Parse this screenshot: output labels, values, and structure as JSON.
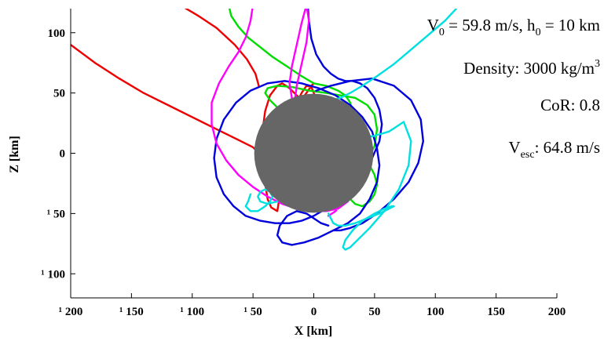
{
  "chart_data": {
    "type": "line",
    "title": "",
    "xlabel": "X [km]",
    "ylabel": "Z [km]",
    "xlim": [
      -200,
      200
    ],
    "ylim": [
      -120,
      120
    ],
    "x_ticks": [
      -200,
      -150,
      -100,
      -50,
      0,
      50,
      100,
      150,
      200
    ],
    "y_ticks": [
      -100,
      -50,
      0,
      50,
      100
    ],
    "x_tick_labels": [
      "¹ 200",
      "¹ 150",
      "¹ 100",
      "¹ 50",
      "0",
      "50",
      "100",
      "150",
      "200"
    ],
    "y_tick_labels": [
      "¹ 100",
      "¹ 50",
      "0",
      "50",
      "100"
    ],
    "grid": false,
    "legend": null,
    "body": {
      "center": [
        0,
        0
      ],
      "radius": 49,
      "color": "#666666"
    },
    "annotations": {
      "v0_label": "V",
      "v0_sub": "0",
      "v0_value": " = 59.8 m/s, h",
      "h0_sub": "0",
      "h0_value": " = 10 km",
      "density_text": "Density: 3000 kg/m",
      "density_sup": "3",
      "cor_text": "CoR: 0.8",
      "vesc_label": "V",
      "vesc_sub": "esc",
      "vesc_value": ": 64.8 m/s"
    },
    "series": [
      {
        "color": "#ee0000",
        "x": [
          -200,
          -180,
          -160,
          -140,
          -120,
          -100,
          -80,
          -70,
          -60,
          -50,
          -45,
          -42,
          -40,
          -38,
          -35,
          -30,
          -28,
          -25,
          -20,
          -15,
          -10,
          -6,
          -2,
          2,
          8,
          12,
          18,
          22,
          24,
          26,
          22,
          16,
          10,
          4,
          -2,
          -8,
          -14,
          -20,
          -28,
          -35,
          -40,
          -42,
          -40,
          -36,
          -30,
          -26,
          -20,
          -14,
          -10,
          -6,
          -2,
          0
        ],
        "y": [
          90,
          75,
          62,
          50,
          40,
          30,
          20,
          15,
          10,
          5,
          0,
          -8,
          -25,
          -38,
          -45,
          -48,
          -35,
          -10,
          20,
          40,
          50,
          56,
          55,
          45,
          38,
          32,
          28,
          22,
          15,
          5,
          -10,
          -25,
          -35,
          -40,
          -42,
          -40,
          -35,
          -28,
          -20,
          -10,
          5,
          20,
          35,
          48,
          56,
          58,
          54,
          48,
          45,
          50,
          56,
          58
        ]
      },
      {
        "color": "#ee0000",
        "x": [
          -110,
          -95,
          -80,
          -65,
          -55,
          -48,
          -45
        ],
        "y": [
          123,
          114,
          104,
          90,
          78,
          66,
          55
        ]
      },
      {
        "color": "#00dd00",
        "x": [
          -70,
          -68,
          -62,
          -54,
          -44,
          -34,
          -22,
          -10,
          0,
          10,
          20,
          26,
          30,
          32,
          28,
          18,
          6,
          -6,
          -18,
          -28,
          -36,
          -40,
          -38,
          -30,
          -18,
          -4,
          10,
          22,
          34,
          44,
          50,
          52,
          50,
          44,
          38,
          34,
          30,
          28,
          30,
          34,
          40,
          46,
          50,
          52,
          50,
          46,
          40
        ],
        "y": [
          123,
          114,
          105,
          96,
          88,
          80,
          72,
          64,
          58,
          56,
          52,
          48,
          42,
          32,
          22,
          16,
          14,
          18,
          26,
          36,
          44,
          50,
          54,
          56,
          55,
          52,
          50,
          48,
          46,
          40,
          32,
          20,
          6,
          -6,
          -14,
          -20,
          -26,
          -32,
          -38,
          -42,
          -44,
          -40,
          -34,
          -26,
          -18,
          -10,
          -4
        ]
      },
      {
        "color": "#0000dd",
        "x": [
          -5,
          -4,
          -2,
          2,
          8,
          14,
          20,
          26,
          32,
          38,
          44,
          50,
          54,
          56,
          54,
          48,
          40,
          30,
          20,
          10,
          0,
          -10,
          -20,
          -32,
          -44,
          -56,
          -66,
          -74,
          -80,
          -82,
          -80,
          -74,
          -64,
          -52,
          -38,
          -24,
          -10,
          4,
          18,
          30,
          40,
          48,
          52,
          54,
          52,
          46,
          38,
          28,
          16,
          4,
          -8,
          -18,
          -26,
          -30,
          -28,
          -22,
          -14,
          -6,
          0,
          6,
          12
        ],
        "y": [
          123,
          110,
          95,
          82,
          72,
          66,
          62,
          60,
          60,
          58,
          54,
          46,
          36,
          24,
          10,
          -4,
          -16,
          -28,
          -38,
          -46,
          -52,
          -56,
          -58,
          -58,
          -56,
          -52,
          -44,
          -34,
          -20,
          -4,
          12,
          28,
          42,
          52,
          58,
          60,
          58,
          54,
          48,
          40,
          30,
          18,
          4,
          -10,
          -24,
          -38,
          -50,
          -58,
          -64,
          -70,
          -74,
          -76,
          -74,
          -68,
          -60,
          -52,
          -48,
          -50,
          -54,
          -58,
          -60
        ]
      },
      {
        "color": "#0000dd",
        "x": [
          2,
          14,
          30,
          48,
          66,
          80,
          88,
          90,
          86,
          78,
          66,
          52,
          40,
          30,
          22,
          16
        ],
        "y": [
          52,
          56,
          60,
          62,
          56,
          44,
          28,
          10,
          -8,
          -24,
          -38,
          -50,
          -58,
          -62,
          -64,
          -64
        ]
      },
      {
        "color": "#ff00ff",
        "x": [
          -50,
          -52,
          -56,
          -62,
          -70,
          -78,
          -84,
          -84,
          -80,
          -72,
          -62,
          -50,
          -38,
          -26,
          -14,
          -2,
          10,
          20,
          28,
          34,
          36,
          34,
          28,
          20,
          10,
          0,
          -8,
          -14,
          -18,
          -20,
          -18,
          -14,
          -10,
          -6,
          -4,
          -6,
          -10,
          -14,
          -16,
          -14,
          -8,
          0,
          10,
          18,
          22,
          22,
          18,
          12
        ],
        "y": [
          123,
          110,
          96,
          84,
          72,
          58,
          42,
          24,
          8,
          -6,
          -18,
          -28,
          -36,
          -42,
          -46,
          -48,
          -48,
          -46,
          -40,
          -30,
          -18,
          -6,
          4,
          12,
          18,
          22,
          28,
          36,
          46,
          58,
          72,
          90,
          108,
          123,
          110,
          92,
          74,
          56,
          40,
          24,
          10,
          -2,
          -12,
          -22,
          -32,
          -42,
          -48,
          -52
        ]
      },
      {
        "color": "#00e0e0",
        "x": [
          120,
          108,
          94,
          80,
          66,
          52,
          40,
          30,
          22,
          16,
          12,
          10,
          14,
          22,
          34,
          48,
          62,
          74,
          80,
          78,
          70,
          58,
          46,
          36,
          30,
          26,
          24,
          26,
          32,
          40,
          50,
          58,
          64,
          66,
          62,
          54,
          44,
          34,
          26,
          20,
          16,
          14,
          12
        ],
        "y": [
          123,
          110,
          98,
          86,
          74,
          64,
          56,
          50,
          46,
          44,
          40,
          32,
          24,
          18,
          14,
          14,
          18,
          26,
          10,
          -10,
          -30,
          -48,
          -62,
          -72,
          -78,
          -80,
          -78,
          -72,
          -64,
          -56,
          -50,
          -46,
          -44,
          -44,
          -46,
          -50,
          -54,
          -58,
          -60,
          -60,
          -58,
          -54,
          -50
        ]
      },
      {
        "color": "#00e0e0",
        "x": [
          -52,
          -54,
          -56,
          -52,
          -46,
          -40,
          -36,
          -34,
          -36,
          -40,
          -44,
          -46,
          -44,
          -38,
          -30
        ],
        "y": [
          -34,
          -40,
          -44,
          -48,
          -48,
          -44,
          -40,
          -36,
          -32,
          -30,
          -32,
          -36,
          -40,
          -42,
          -40
        ]
      }
    ]
  }
}
